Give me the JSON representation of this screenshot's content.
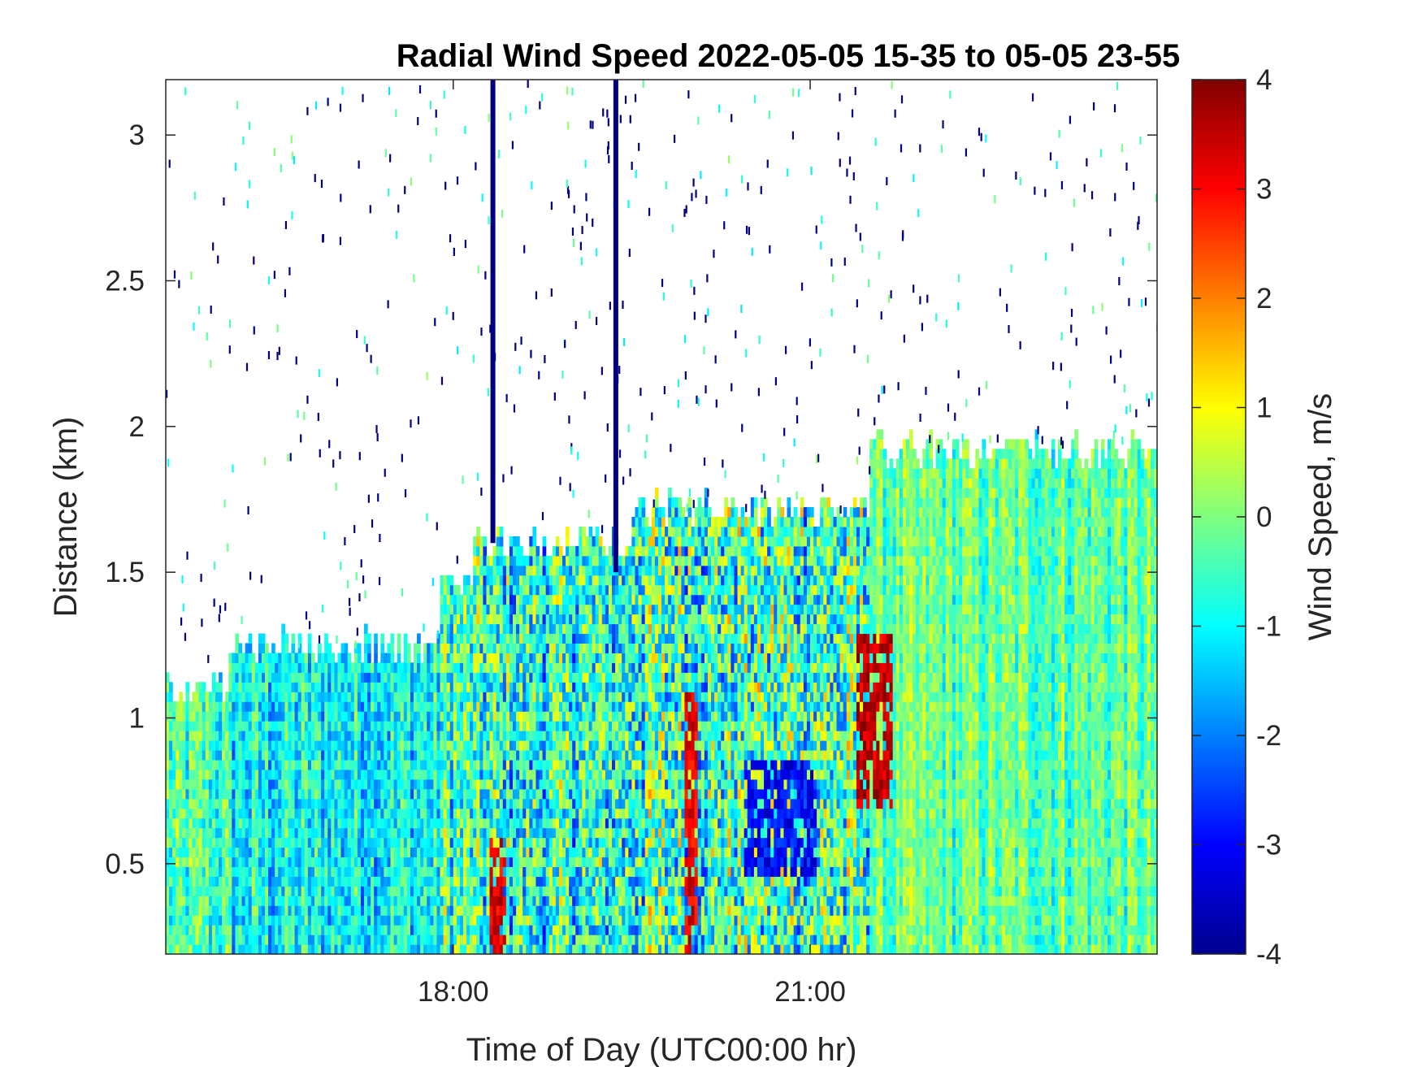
{
  "chart_data": {
    "type": "heatmap",
    "title": "Radial Wind Speed 2022-05-05 15-35 to 05-05 23-55",
    "xlabel": "Time of Day (UTC00:00 hr)",
    "ylabel": "Distance (km)",
    "xlim": [
      "15:35",
      "23:55"
    ],
    "ylim": [
      0.19,
      3.19
    ],
    "x_ticks": [
      {
        "value": "18:00",
        "label": "18:00"
      },
      {
        "value": "21:00",
        "label": "21:00"
      }
    ],
    "y_ticks": [
      {
        "value": 0.5,
        "label": "0.5"
      },
      {
        "value": 1,
        "label": "1"
      },
      {
        "value": 1.5,
        "label": "1.5"
      },
      {
        "value": 2,
        "label": "2"
      },
      {
        "value": 2.5,
        "label": "2.5"
      },
      {
        "value": 3,
        "label": "3"
      }
    ],
    "colorbar": {
      "label": "Wind Speed, m/s",
      "colormap": "jet",
      "range": [
        -4,
        4
      ],
      "ticks": [
        4,
        3,
        2,
        1,
        0,
        -1,
        -2,
        -3,
        -4
      ],
      "tick_labels": [
        "4",
        "3",
        "2",
        "1",
        "0",
        "-1",
        "-2",
        "-3",
        "-4"
      ]
    },
    "regions": [
      {
        "time": [
          "15:35",
          "16:06"
        ],
        "distance_top_km": 1.1,
        "typical_speed_ms": [
          -1.5,
          0.5
        ]
      },
      {
        "time": [
          "16:06",
          "16:53"
        ],
        "distance_top_km": 1.25,
        "typical_speed_ms": [
          -2,
          0
        ]
      },
      {
        "time": [
          "16:53",
          "17:53"
        ],
        "distance_top_km": 1.25,
        "typical_speed_ms": [
          -2,
          0
        ]
      },
      {
        "time": [
          "17:53",
          "18:10"
        ],
        "distance_top_km": 1.45,
        "typical_speed_ms": [
          -2,
          1
        ]
      },
      {
        "time": [
          "18:10",
          "19:30"
        ],
        "distance_top_km": 1.6,
        "typical_speed_ms": [
          -2.5,
          1
        ]
      },
      {
        "time": [
          "19:30",
          "21:30"
        ],
        "distance_top_km": 1.72,
        "typical_speed_ms": [
          -2.5,
          1.5
        ]
      },
      {
        "time": [
          "21:30",
          "23:55"
        ],
        "distance_top_km": 1.92,
        "typical_speed_ms": [
          -1,
          0.5
        ]
      }
    ],
    "features": [
      {
        "kind": "strong negative column",
        "time": "18:20",
        "distance_km": [
          1.6,
          3.19
        ],
        "speed_ms": -4
      },
      {
        "kind": "strong negative column",
        "time": "19:22",
        "distance_km": [
          1.5,
          3.19
        ],
        "speed_ms": -4
      },
      {
        "kind": "positive core",
        "time": "21:32",
        "distance_km": [
          0.7,
          1.3
        ],
        "speed_ms": 3.5
      },
      {
        "kind": "positive streak",
        "time": "20:00",
        "distance_km": [
          0.19,
          1.1
        ],
        "speed_ms": 3.2
      },
      {
        "kind": "positive streak",
        "time": "18:22",
        "distance_km": [
          0.19,
          0.6
        ],
        "speed_ms": 3.3
      },
      {
        "kind": "negative patch",
        "time": "20:45",
        "distance_km": [
          0.45,
          0.85
        ],
        "speed_ms": -3
      }
    ]
  }
}
